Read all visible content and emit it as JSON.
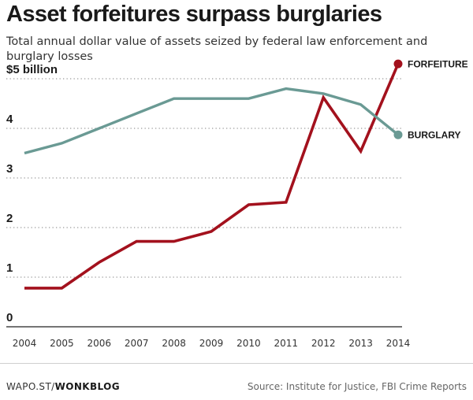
{
  "header": {
    "title": "Asset forfeitures surpass burglaries",
    "subtitle": "Total annual dollar value of assets seized by federal law enforcement and burglary losses"
  },
  "footer": {
    "brand_prefix": "WAPO.ST/",
    "brand_name": "WONKBLOG",
    "source": "Source: Institute for Justice, FBI Crime Reports"
  },
  "chart_data": {
    "type": "line",
    "x": [
      2004,
      2005,
      2006,
      2007,
      2008,
      2009,
      2010,
      2011,
      2012,
      2013,
      2014
    ],
    "y_ticks": [
      0,
      1,
      2,
      3,
      4,
      5
    ],
    "y_tick_labels": [
      "0",
      "1",
      "2",
      "3",
      "4",
      "$5 billion"
    ],
    "ylim": [
      0,
      5.3
    ],
    "xlim": [
      2004,
      2014
    ],
    "grid": "horizontal-dotted",
    "legend": "direct-labels-right",
    "series": [
      {
        "name": "FORFEITURE",
        "color": "#a3111d",
        "values": [
          0.78,
          0.78,
          1.3,
          1.72,
          1.72,
          1.92,
          2.46,
          2.51,
          4.62,
          3.54,
          5.3
        ]
      },
      {
        "name": "BURGLARY",
        "color": "#6a9a94",
        "values": [
          3.5,
          3.7,
          4.0,
          4.3,
          4.6,
          4.6,
          4.6,
          4.8,
          4.7,
          4.48,
          3.87
        ]
      }
    ]
  }
}
